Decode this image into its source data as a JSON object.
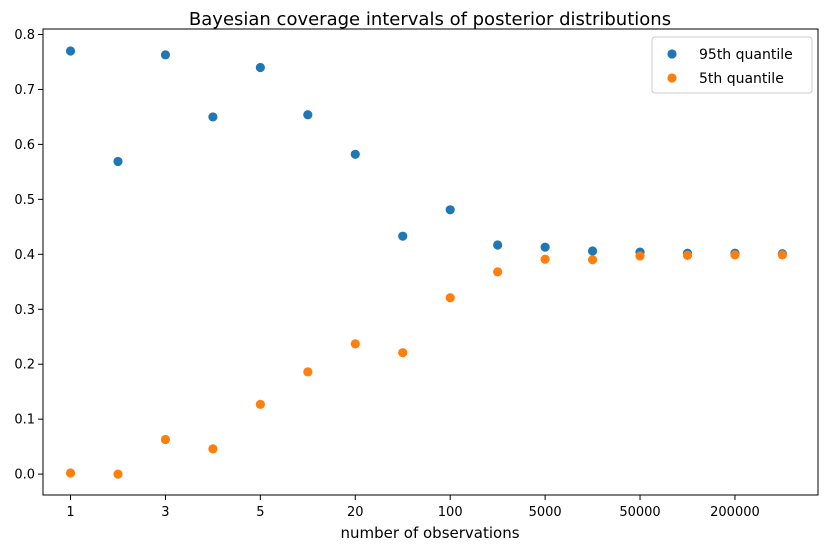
{
  "chart_data": {
    "type": "scatter",
    "title": "Bayesian coverage intervals of posterior distributions",
    "xlabel": "number of observations",
    "ylabel": "",
    "x": [
      1,
      2,
      3,
      4,
      5,
      6,
      7,
      8,
      9,
      10,
      11,
      12,
      13,
      14,
      15,
      16
    ],
    "xtick_values": [
      1,
      3,
      5,
      7,
      9,
      11,
      13,
      15
    ],
    "xtick_labels": [
      "1",
      "3",
      "5",
      "20",
      "100",
      "5000",
      "50000",
      "200000"
    ],
    "xlim": [
      0.42,
      16.75
    ],
    "ylim": [
      -0.038,
      0.81
    ],
    "yticks": [
      0.0,
      0.1,
      0.2,
      0.3,
      0.4,
      0.5,
      0.6,
      0.7,
      0.8
    ],
    "ytick_labels": [
      "0.0",
      "0.1",
      "0.2",
      "0.3",
      "0.4",
      "0.5",
      "0.6",
      "0.7",
      "0.8"
    ],
    "grid": false,
    "legend_position": "top-right",
    "series": [
      {
        "name": "95th quantile",
        "color": "#1f77b4",
        "values": [
          0.77,
          0.569,
          0.763,
          0.65,
          0.74,
          0.654,
          0.582,
          0.433,
          0.481,
          0.417,
          0.413,
          0.406,
          0.404,
          0.402,
          0.402,
          0.401
        ]
      },
      {
        "name": "5th quantile",
        "color": "#ff7f0e",
        "values": [
          0.002,
          0.0,
          0.063,
          0.046,
          0.127,
          0.186,
          0.237,
          0.221,
          0.321,
          0.368,
          0.391,
          0.39,
          0.397,
          0.398,
          0.399,
          0.399
        ]
      }
    ]
  }
}
